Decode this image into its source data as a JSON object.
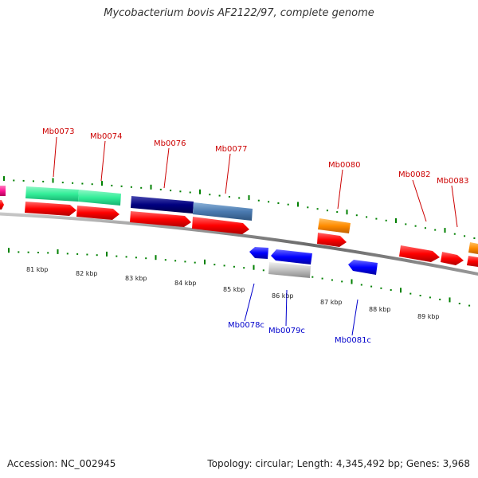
{
  "title": "Mycobacterium bovis AF2122/97, complete genome",
  "footer": {
    "accession": "Accession: NC_002945",
    "summary": "Topology: circular; Length: 4,345,492 bp; Genes: 3,968"
  },
  "scale_labels": [
    "81 kbp",
    "82 kbp",
    "83 kbp",
    "84 kbp",
    "85 kbp",
    "86 kbp",
    "87 kbp",
    "88 kbp",
    "89 kbp"
  ],
  "gene_labels": {
    "forward": [
      "Mb0073",
      "Mb0074",
      "Mb0076",
      "Mb0077",
      "Mb0080",
      "Mb0082",
      "Mb0083"
    ],
    "reverse": [
      "Mb0078c",
      "Mb0079c",
      "Mb0081c"
    ]
  },
  "colors": {
    "forward_label": "#cc0000",
    "reverse_label": "#0000cc",
    "backbone": "#808080",
    "tick": "#008000",
    "cds_red": "#ff0000",
    "cds_blue": "#0000ff",
    "teal": "#33ee99",
    "navy": "#000080",
    "steelblue": "#4a7ab0",
    "orange": "#ff8c00",
    "magenta": "#ff1493",
    "grey": "#c0c0c0"
  }
}
